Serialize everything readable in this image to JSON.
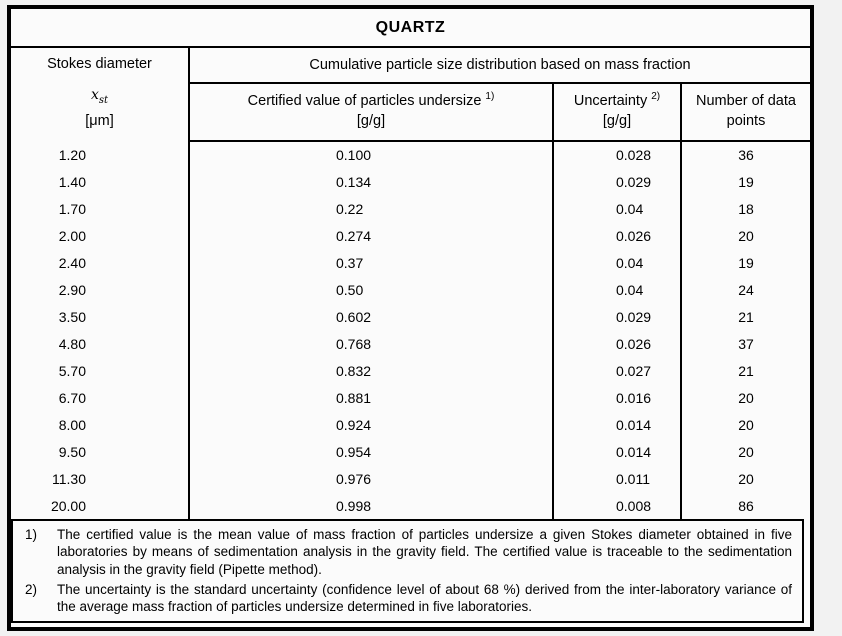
{
  "title": "QUARTZ",
  "table": {
    "col1_header": {
      "line1": "Stokes diameter",
      "symbol": "x",
      "symbol_sub": "st",
      "unit": "[μm]"
    },
    "span_header": "Cumulative particle size distribution based on mass fraction",
    "sub_headers": [
      {
        "label": "Certified value of particles undersize",
        "ref": "1)",
        "unit": "[g/g]"
      },
      {
        "label": "Uncertainty",
        "ref": "2)",
        "unit": "[g/g]"
      },
      {
        "label": "Number of data points",
        "ref": "",
        "unit": ""
      }
    ],
    "col_keys": [
      "stokes-diameter",
      "certified-value",
      "uncertainty",
      "data-points"
    ],
    "rows": [
      [
        "1.20",
        "0.100",
        "0.028",
        "36"
      ],
      [
        "1.40",
        "0.134",
        "0.029",
        "19"
      ],
      [
        "1.70",
        "0.22",
        "0.04",
        "18"
      ],
      [
        "2.00",
        "0.274",
        "0.026",
        "20"
      ],
      [
        "2.40",
        "0.37",
        "0.04",
        "19"
      ],
      [
        "2.90",
        "0.50",
        "0.04",
        "24"
      ],
      [
        "3.50",
        "0.602",
        "0.029",
        "21"
      ],
      [
        "4.80",
        "0.768",
        "0.026",
        "37"
      ],
      [
        "5.70",
        "0.832",
        "0.027",
        "21"
      ],
      [
        "6.70",
        "0.881",
        "0.016",
        "20"
      ],
      [
        "8.00",
        "0.924",
        "0.014",
        "20"
      ],
      [
        "9.50",
        "0.954",
        "0.014",
        "20"
      ],
      [
        "11.30",
        "0.976",
        "0.011",
        "20"
      ],
      [
        "20.00",
        "0.998",
        "0.008",
        "86"
      ]
    ]
  },
  "footnotes": [
    {
      "marker": "1)",
      "text": "The certified value is the mean value of mass fraction of particles undersize a given Stokes diameter obtained in five laboratories by means of sedimentation analysis in the gravity field. The certified value is traceable to the sedimentation analysis in the gravity field (Pipette method)."
    },
    {
      "marker": "2)",
      "text": "The uncertainty is the standard uncertainty (confidence level of about 68 %) derived from the inter-laboratory variance of the average mass fraction of particles undersize determined in five laboratories."
    }
  ],
  "colors": {
    "border": "#000000",
    "page_background": "#f2f2f2",
    "table_background": "#fbfbfb"
  }
}
